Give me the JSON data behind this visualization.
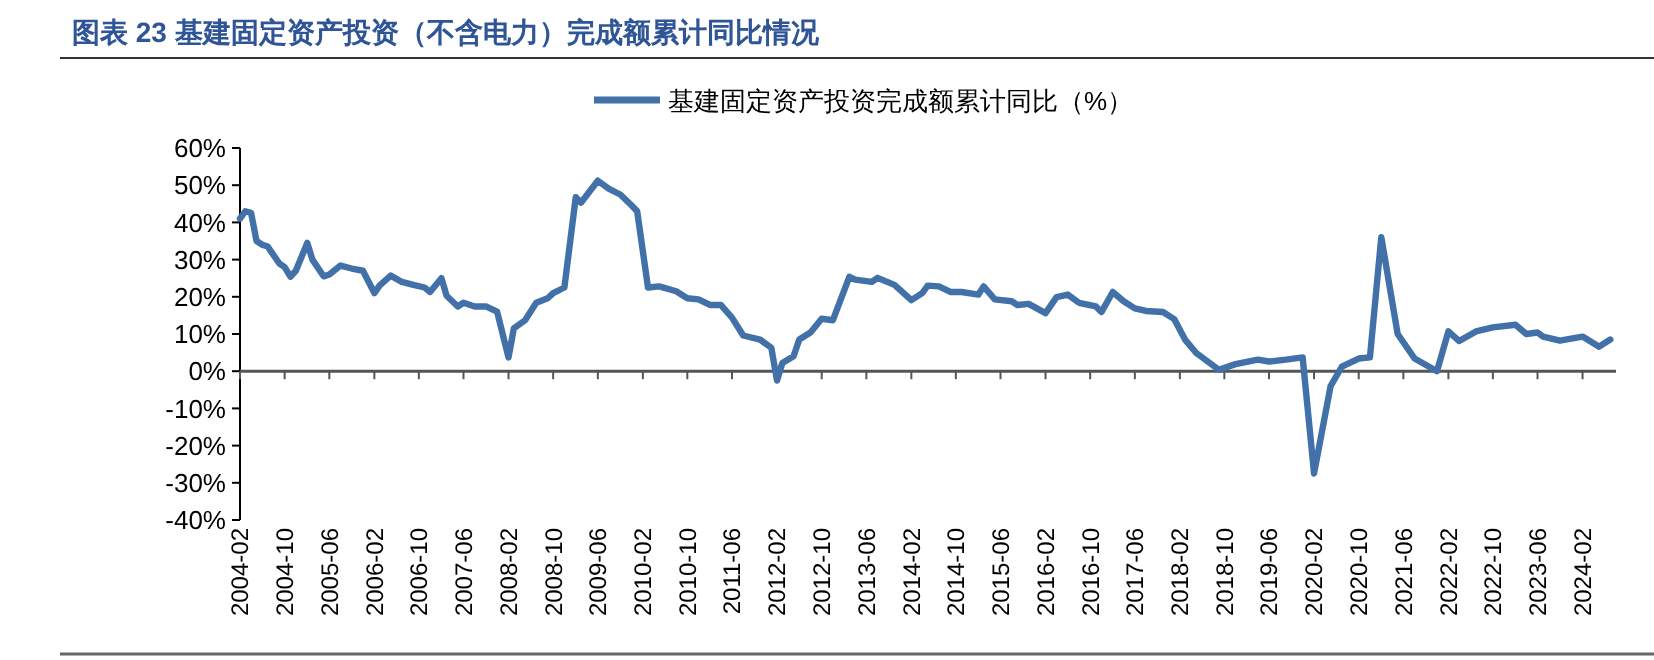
{
  "chart_data": {
    "type": "line",
    "title": "图表 23 基建固定资产投资（不含电力）完成额累计同比情况",
    "legend": "top",
    "xlim": [
      "2004-02",
      "2024-08"
    ],
    "xticks": [
      "2004-02",
      "2004-10",
      "2005-06",
      "2006-02",
      "2006-10",
      "2007-06",
      "2008-02",
      "2008-10",
      "2009-06",
      "2010-02",
      "2010-10",
      "2011-06",
      "2012-02",
      "2012-10",
      "2013-06",
      "2014-02",
      "2014-10",
      "2015-06",
      "2016-02",
      "2016-10",
      "2017-06",
      "2018-02",
      "2018-10",
      "2019-06",
      "2020-02",
      "2020-10",
      "2021-06",
      "2022-02",
      "2022-10",
      "2023-06",
      "2024-02"
    ],
    "ylim": [
      -40,
      60
    ],
    "yticks": [
      {
        "value": -40,
        "label": "-40%"
      },
      {
        "value": -30,
        "label": "-30%"
      },
      {
        "value": -20,
        "label": "-20%"
      },
      {
        "value": -10,
        "label": "-10%"
      },
      {
        "value": 0,
        "label": "0%"
      },
      {
        "value": 10,
        "label": "10%"
      },
      {
        "value": 20,
        "label": "20%"
      },
      {
        "value": 30,
        "label": "30%"
      },
      {
        "value": 40,
        "label": "40%"
      },
      {
        "value": 50,
        "label": "50%"
      },
      {
        "value": 60,
        "label": "60%"
      }
    ],
    "series": [
      {
        "name": "基建固定资产投资完成额累计同比（%）",
        "color": "#4171a8",
        "x": [
          "2004-02",
          "2004-03",
          "2004-04",
          "2004-05",
          "2004-06",
          "2004-07",
          "2004-09",
          "2004-10",
          "2004-11",
          "2004-12",
          "2005-02",
          "2005-03",
          "2005-05",
          "2005-06",
          "2005-08",
          "2005-10",
          "2005-12",
          "2006-02",
          "2006-03",
          "2006-05",
          "2006-07",
          "2006-09",
          "2006-11",
          "2006-12",
          "2007-02",
          "2007-03",
          "2007-05",
          "2007-06",
          "2007-08",
          "2007-10",
          "2007-12",
          "2008-02",
          "2008-03",
          "2008-05",
          "2008-07",
          "2008-09",
          "2008-10",
          "2008-12",
          "2009-02",
          "2009-03",
          "2009-06",
          "2009-08",
          "2009-10",
          "2009-12",
          "2010-01",
          "2010-03",
          "2010-05",
          "2010-08",
          "2010-10",
          "2010-12",
          "2011-02",
          "2011-04",
          "2011-06",
          "2011-08",
          "2011-11",
          "2012-01",
          "2012-02",
          "2012-03",
          "2012-05",
          "2012-06",
          "2012-08",
          "2012-10",
          "2012-12",
          "2013-03",
          "2013-04",
          "2013-07",
          "2013-08",
          "2013-11",
          "2014-02",
          "2014-04",
          "2014-05",
          "2014-07",
          "2014-09",
          "2014-11",
          "2015-02",
          "2015-03",
          "2015-05",
          "2015-08",
          "2015-09",
          "2015-11",
          "2016-02",
          "2016-04",
          "2016-06",
          "2016-08",
          "2016-11",
          "2016-12",
          "2017-02",
          "2017-04",
          "2017-06",
          "2017-08",
          "2017-11",
          "2018-01",
          "2018-03",
          "2018-05",
          "2018-09",
          "2018-12",
          "2019-04",
          "2019-06",
          "2019-09",
          "2019-12",
          "2020-02",
          "2020-05",
          "2020-07",
          "2020-10",
          "2020-12",
          "2021-02",
          "2021-05",
          "2021-08",
          "2021-12",
          "2022-02",
          "2022-04",
          "2022-07",
          "2022-10",
          "2023-02",
          "2023-04",
          "2023-06",
          "2023-07",
          "2023-10",
          "2024-02",
          "2024-05",
          "2024-07"
        ],
        "values": [
          41,
          43,
          42.6,
          35,
          34,
          33.5,
          29,
          28,
          25.4,
          27,
          34.5,
          30,
          25.5,
          26,
          28.4,
          27.6,
          27,
          21,
          23,
          25.7,
          24,
          23.2,
          22.5,
          21.3,
          25,
          20.3,
          17.4,
          18.4,
          17.4,
          17.4,
          16,
          3.7,
          11.5,
          13.7,
          18.4,
          19.6,
          21,
          22.5,
          46.8,
          45.3,
          51.2,
          49,
          47.5,
          44.6,
          43,
          22.5,
          22.8,
          21.5,
          19.6,
          19.3,
          17.8,
          17.8,
          14.4,
          9.6,
          8.5,
          6.3,
          -2.5,
          2.2,
          4,
          8.5,
          10.4,
          14.1,
          13.7,
          25.4,
          24.6,
          24,
          25.1,
          23.2,
          19.1,
          21,
          23,
          22.8,
          21.3,
          21.3,
          20.6,
          22.8,
          19.3,
          18.8,
          17.8,
          18.1,
          15.6,
          19.9,
          20.6,
          18.4,
          17.4,
          15.9,
          21.3,
          18.8,
          16.9,
          16.2,
          15.9,
          14,
          8.5,
          4.9,
          0.4,
          1.9,
          3.1,
          2.6,
          3.1,
          3.7,
          -27.5,
          -4,
          1.2,
          3.4,
          3.7,
          36,
          10,
          3.4,
          0,
          10.7,
          8.1,
          10.7,
          11.8,
          12.5,
          10,
          10.4,
          9.3,
          8.2,
          9.3,
          6.6,
          8.5
        ]
      }
    ]
  }
}
